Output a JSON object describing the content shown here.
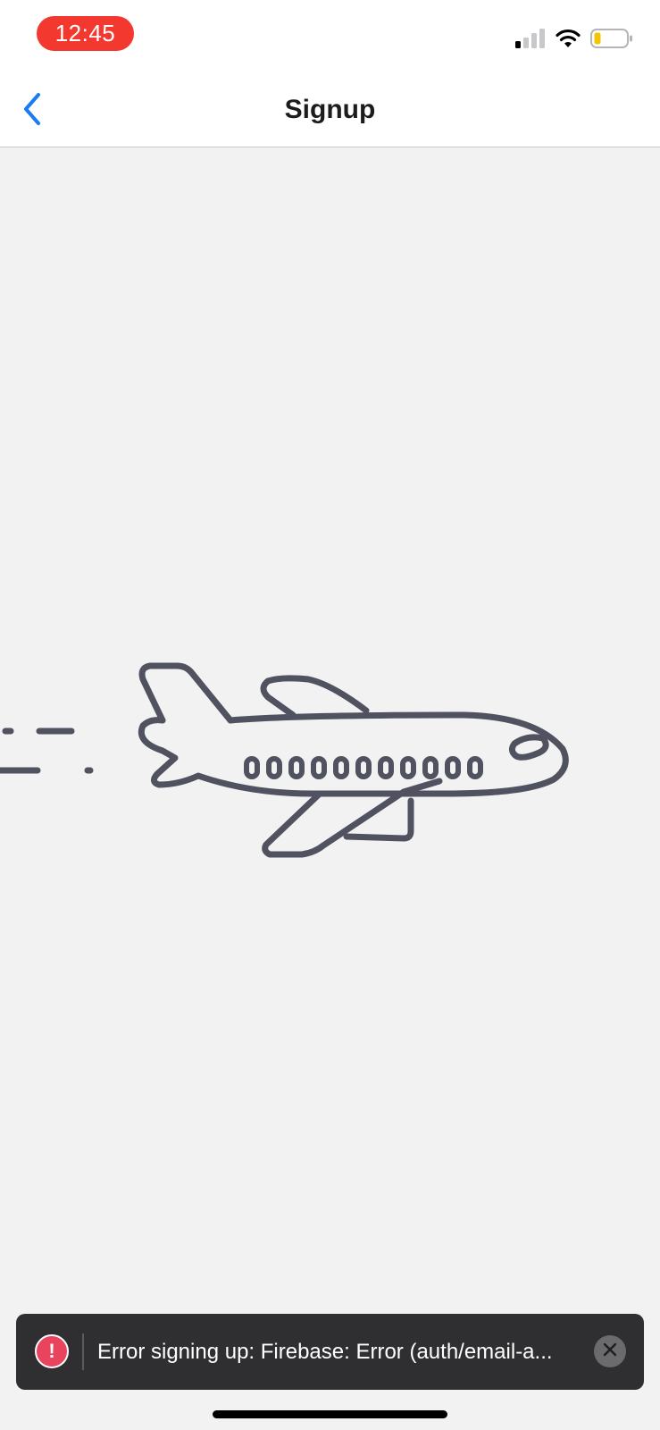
{
  "status_bar": {
    "time": "12:45",
    "time_pill_color": "#f2382f",
    "icons": [
      "cellular-signal-icon",
      "wifi-icon",
      "battery-low-icon"
    ],
    "battery_level": 0.15
  },
  "nav": {
    "back_icon": "chevron-left-icon",
    "title": "Signup",
    "accent_color": "#1a7cf5"
  },
  "illustration": {
    "icon": "airplane-icon"
  },
  "toast": {
    "icon": "alert-circle-icon",
    "message": "Error signing up: Firebase: Error (auth/email-a...",
    "close_icon": "close-icon",
    "icon_color": "#e8445d"
  }
}
